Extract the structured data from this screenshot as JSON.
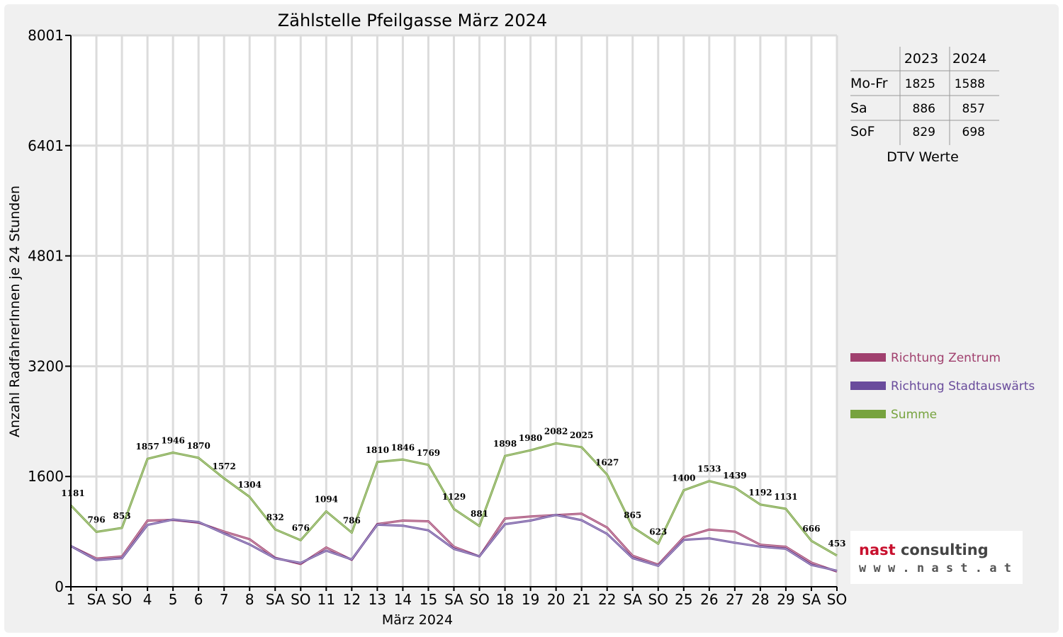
{
  "chart_data": {
    "type": "line",
    "title": "Zählstelle Pfeilgasse März 2024",
    "xlabel": "März 2024",
    "ylabel": "Anzahl RadfahrerInnen je 24 Stunden",
    "ylim": [
      0,
      8001
    ],
    "yticks": [
      "0",
      "1600",
      "3200",
      "4801",
      "6401",
      "8001"
    ],
    "ytick_values": [
      0,
      1600,
      3200,
      4801,
      6401,
      8001
    ],
    "grid": true,
    "legend_position": "right",
    "categories": [
      "1",
      "SA",
      "SO",
      "4",
      "5",
      "6",
      "7",
      "8",
      "SA",
      "SO",
      "11",
      "12",
      "13",
      "14",
      "15",
      "SA",
      "SO",
      "18",
      "19",
      "20",
      "21",
      "22",
      "SA",
      "SO",
      "25",
      "26",
      "27",
      "28",
      "29",
      "SA",
      "SO"
    ],
    "category_colors": [
      "#000000",
      "#000000",
      "#ff0000",
      "#000000",
      "#000000",
      "#000000",
      "#000000",
      "#000000",
      "#000000",
      "#ff0000",
      "#000000",
      "#000000",
      "#000000",
      "#000000",
      "#000000",
      "#000000",
      "#ff0000",
      "#000000",
      "#000000",
      "#000000",
      "#000000",
      "#000000",
      "#000000",
      "#ff0000",
      "#000000",
      "#000000",
      "#000000",
      "#000000",
      "#000000",
      "#000000",
      "#ff0000"
    ],
    "series": [
      {
        "name": "Richtung Zentrum",
        "color": "#a0406e",
        "values": [
          590,
          410,
          440,
          960,
          970,
          930,
          800,
          690,
          420,
          330,
          570,
          390,
          910,
          960,
          950,
          580,
          440,
          990,
          1020,
          1040,
          1060,
          860,
          450,
          320,
          720,
          830,
          800,
          610,
          580,
          350,
          220
        ]
      },
      {
        "name": "Richtung Stadtauswärts",
        "color": "#6a4c9c",
        "values": [
          591,
          386,
          413,
          897,
          976,
          940,
          772,
          614,
          412,
          346,
          524,
          396,
          900,
          886,
          819,
          549,
          441,
          908,
          960,
          1042,
          965,
          767,
          415,
          303,
          680,
          703,
          639,
          582,
          551,
          316,
          233
        ]
      },
      {
        "name": "Summe",
        "color": "#77a33f",
        "values": [
          1181,
          796,
          853,
          1857,
          1946,
          1870,
          1572,
          1304,
          832,
          676,
          1094,
          786,
          1810,
          1846,
          1769,
          1129,
          881,
          1898,
          1980,
          2082,
          2025,
          1627,
          865,
          623,
          1400,
          1533,
          1439,
          1192,
          1131,
          666,
          453
        ],
        "labels": [
          "1181",
          "796",
          "853",
          "1857",
          "1946",
          "1870",
          "1572",
          "1304",
          "832",
          "676",
          "1094",
          "786",
          "1810",
          "1846",
          "1769",
          "1129",
          "881",
          "1898",
          "1980",
          "2082",
          "2025",
          "1627",
          "865",
          "623",
          "1400",
          "1533",
          "1439",
          "1192",
          "1131",
          "666",
          "453"
        ]
      }
    ]
  },
  "dtv_table": {
    "caption": "DTV Werte",
    "headers": [
      "",
      "2023",
      "2024"
    ],
    "rows": [
      {
        "label": "Mo-Fr",
        "v2023": "1825",
        "v2024": "1588"
      },
      {
        "label": "Sa",
        "v2023": "886",
        "v2024": "857"
      },
      {
        "label": "SoF",
        "v2023": "829",
        "v2024": "698"
      }
    ]
  },
  "logo": {
    "name_part1": "nast",
    "name_part2": " consulting",
    "url": "w w w . n a s t . a t",
    "color_part1": "#c8102e",
    "color_part2": "#444444"
  }
}
